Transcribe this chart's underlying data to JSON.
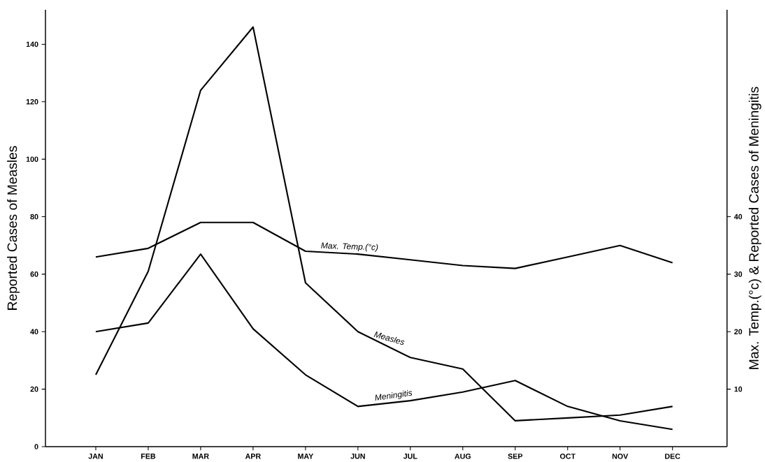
{
  "chart_data": {
    "type": "line",
    "ylabel": "Reported Cases of Measles",
    "y2label": "Max. Temp.(°c) & Reported Cases of Meningitis",
    "categories": [
      "JAN",
      "FEB",
      "MAR",
      "APR",
      "MAY",
      "JUN",
      "JUL",
      "AUG",
      "SEP",
      "OCT",
      "NOV",
      "DEC"
    ],
    "ylim": [
      0,
      152
    ],
    "yticks": [
      0,
      20,
      40,
      60,
      80,
      100,
      120,
      140
    ],
    "y2lim": [
      0,
      76
    ],
    "y2ticks": [
      10,
      20,
      30,
      40
    ],
    "line_style": "solid",
    "series": [
      {
        "name": "Measles",
        "color": "#000000",
        "values": [
          25,
          61,
          124,
          146,
          57,
          40,
          31,
          27,
          9,
          10,
          11,
          14
        ]
      },
      {
        "name": "Max. Temp.(°c)",
        "color": "#000000",
        "axis": "y2",
        "values": [
          33,
          34.5,
          39,
          39,
          34,
          33.5,
          32.5,
          31.5,
          31,
          33,
          35,
          32
        ]
      },
      {
        "name": "Meningitis",
        "color": "#000000",
        "axis": "y2",
        "values": [
          20,
          21.5,
          33.5,
          20.5,
          12.5,
          7,
          8,
          9.5,
          11.5,
          7,
          4.5,
          3
        ]
      }
    ]
  }
}
